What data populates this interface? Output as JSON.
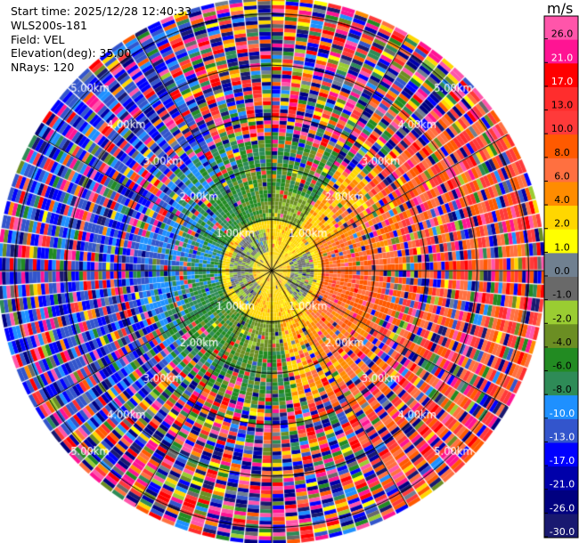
{
  "info": {
    "start_time": "Start time: 2025/12/28 12:40:33",
    "instrument": "WLS200s-181",
    "field": "Field: VEL",
    "elevation": "Elevation(deg): 35.00",
    "nrays": "NRays: 120"
  },
  "colorbar": {
    "unit": "m/s",
    "ticks": [
      "26.0",
      "21.0",
      "17.0",
      "13.0",
      "10.0",
      "8.0",
      "6.0",
      "4.0",
      "2.0",
      "1.0",
      "0.0",
      "-1.0",
      "-2.0",
      "-4.0",
      "-6.0",
      "-8.0",
      "-10.0",
      "-13.0",
      "-17.0",
      "-21.0",
      "-26.0",
      "-30.0"
    ],
    "colors": [
      "#ff55aa",
      "#ff1493",
      "#ff0000",
      "#ff2d2d",
      "#ff3a3a",
      "#ff5a00",
      "#ff7040",
      "#ff8c00",
      "#ffd700",
      "#ffff00",
      "#708090",
      "#696969",
      "#9acd32",
      "#6b8e23",
      "#228b22",
      "#2e8b57",
      "#1e90ff",
      "#3355cc",
      "#0000ff",
      "#0000aa",
      "#000080",
      "#191970"
    ]
  },
  "chart_data": {
    "type": "ppi",
    "field": "VEL",
    "unit": "m/s",
    "elevation_deg": 35.0,
    "nrays": 120,
    "range_rings_km": [
      1.0,
      2.0,
      3.0,
      4.0,
      5.0
    ],
    "range_labels": [
      "1.00km",
      "2.00km",
      "3.00km",
      "4.00km",
      "5.00km"
    ],
    "max_range_km": 5.3,
    "gate_km": 0.075,
    "azimuth_lines_deg": [
      0,
      30,
      60,
      90,
      120,
      150,
      180,
      210,
      240,
      270,
      300,
      330
    ],
    "velocity_structure": {
      "core_radius_km": 1.0,
      "core_value": 3.0,
      "outer_noise_start_km": 2.6,
      "positive_sector_center_deg": 100,
      "positive_sector_value": 9.0,
      "negative_sector_center_deg": 280,
      "negative_sector_value": -11.0,
      "mid_ring_value": -5.0
    }
  }
}
